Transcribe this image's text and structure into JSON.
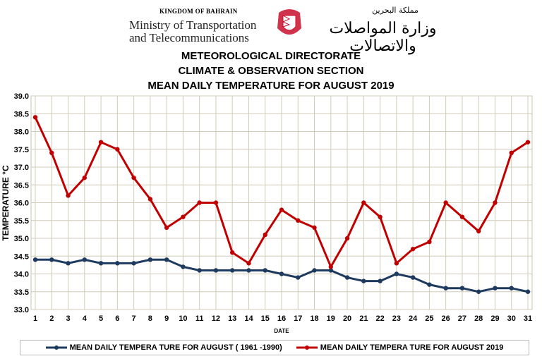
{
  "header": {
    "kingdom": "KINGDOM OF BAHRAIN",
    "ministry_line1": "Ministry of Transportation",
    "ministry_line2": "and Telecommunications",
    "arabic_kingdom": "مملكة البحرين",
    "arabic_ministry": "وزارة المواصلات والاتصالات"
  },
  "titles": [
    "METEOROLOGICAL DIRECTORATE",
    "CLIMATE & OBSERVATION SECTION",
    "MEAN DAILY TEMPERATURE  FOR AUGUST 2019"
  ],
  "chart_data": {
    "type": "line",
    "title": "MEAN DAILY TEMPERATURE  FOR AUGUST 2019",
    "xlabel": "DATE",
    "ylabel": "TEMPERATURE °C",
    "ylim": [
      33.0,
      39.0
    ],
    "ystep": 0.5,
    "grid": true,
    "legend": "bottom",
    "x": [
      1,
      2,
      3,
      4,
      5,
      6,
      7,
      8,
      9,
      10,
      11,
      12,
      13,
      14,
      15,
      16,
      17,
      18,
      19,
      20,
      21,
      22,
      23,
      24,
      25,
      26,
      27,
      28,
      29,
      30,
      31
    ],
    "series": [
      {
        "name": "MEAN DAILY TEMPERA TURE FOR AUGUST ( 1961 -1990)",
        "color": "#1f3a5f",
        "values": [
          34.4,
          34.4,
          34.3,
          34.4,
          34.3,
          34.3,
          34.3,
          34.4,
          34.4,
          34.2,
          34.1,
          34.1,
          34.1,
          34.1,
          34.1,
          34.0,
          33.9,
          34.1,
          34.1,
          33.9,
          33.8,
          33.8,
          34.0,
          33.9,
          33.7,
          33.6,
          33.6,
          33.5,
          33.6,
          33.6,
          33.5
        ]
      },
      {
        "name": "MEAN DAILY TEMPERA TURE FOR AUGUST 2019",
        "color": "#c00000",
        "values": [
          38.4,
          37.4,
          36.2,
          36.7,
          37.7,
          37.5,
          36.7,
          36.1,
          35.3,
          35.6,
          36.0,
          36.0,
          34.6,
          34.3,
          35.1,
          35.8,
          35.5,
          35.3,
          34.2,
          35.0,
          36.0,
          35.6,
          34.3,
          34.7,
          34.9,
          36.0,
          35.6,
          35.2,
          36.0,
          37.4,
          37.7
        ]
      }
    ]
  }
}
